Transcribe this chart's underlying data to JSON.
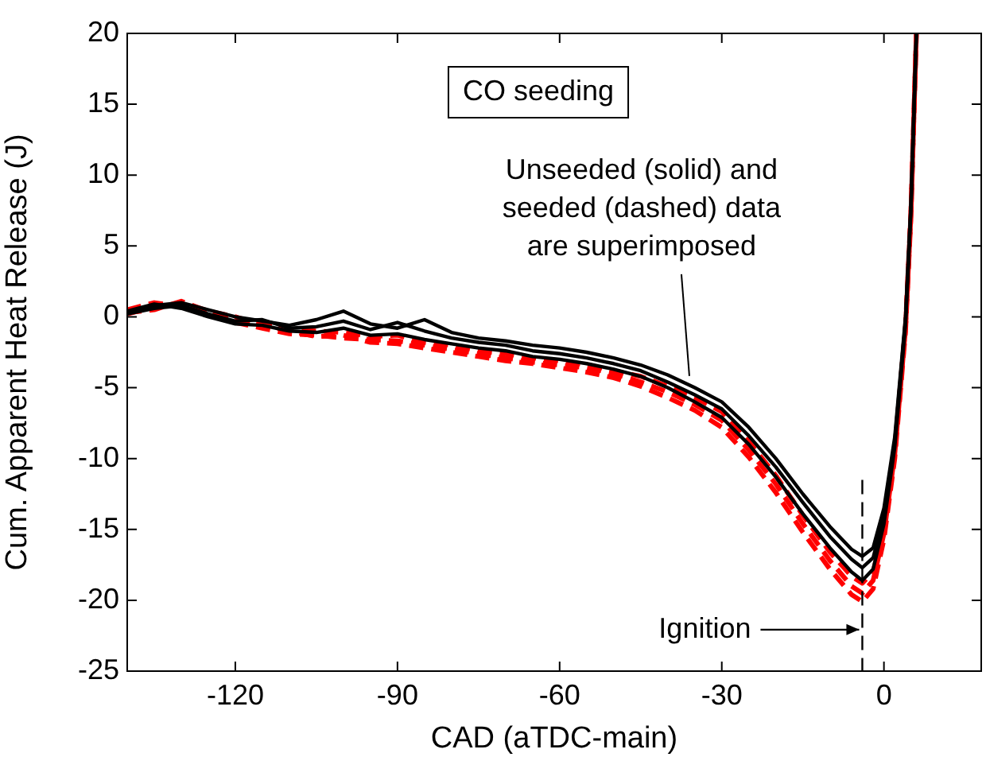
{
  "chart_data": {
    "type": "line",
    "xlabel": "CAD (aTDC-main)",
    "ylabel": "Cum. Apparent Heat Release (J)",
    "xlim": [
      -140,
      18
    ],
    "xticks": [
      -120,
      -90,
      -60,
      -30,
      0
    ],
    "ylim": [
      -25,
      20
    ],
    "yticks": [
      -25,
      -20,
      -15,
      -10,
      -5,
      0,
      5,
      10,
      15,
      20
    ],
    "marker": "none",
    "series": [
      {
        "color": "#000000",
        "line_style": "solid",
        "x": [
          -140,
          -135,
          -130,
          -125,
          -120,
          -115,
          -110,
          -105,
          -100,
          -95,
          -90,
          -85,
          -80,
          -75,
          -70,
          -65,
          -60,
          -55,
          -50,
          -45,
          -40,
          -35,
          -30,
          -25,
          -20,
          -15,
          -10,
          -6,
          -4,
          -2,
          0,
          2,
          4,
          5,
          6
        ],
        "values": [
          0.3,
          0.8,
          1.0,
          0.5,
          0.0,
          -0.3,
          -0.6,
          -0.2,
          0.4,
          -0.5,
          -0.8,
          -0.2,
          -1.1,
          -1.5,
          -1.7,
          -2.0,
          -2.2,
          -2.5,
          -2.9,
          -3.4,
          -4.1,
          -5.0,
          -6.0,
          -7.8,
          -10.0,
          -12.5,
          -14.8,
          -16.4,
          -16.9,
          -16.3,
          -13.5,
          -8.5,
          0.0,
          8.0,
          20
        ]
      },
      {
        "color": "#000000",
        "line_style": "solid",
        "x": [
          -140,
          -135,
          -130,
          -125,
          -120,
          -115,
          -110,
          -105,
          -100,
          -95,
          -90,
          -85,
          -80,
          -75,
          -70,
          -65,
          -60,
          -55,
          -50,
          -45,
          -40,
          -35,
          -30,
          -25,
          -20,
          -15,
          -10,
          -6,
          -4,
          -2,
          0,
          2,
          4,
          5,
          6
        ],
        "values": [
          0.2,
          0.6,
          0.8,
          0.2,
          -0.3,
          -0.2,
          -0.8,
          -0.7,
          -0.3,
          -0.9,
          -0.4,
          -1.0,
          -1.5,
          -1.8,
          -2.0,
          -2.4,
          -2.6,
          -2.9,
          -3.3,
          -3.8,
          -4.6,
          -5.5,
          -6.5,
          -8.4,
          -10.6,
          -13.1,
          -15.5,
          -17.1,
          -17.7,
          -17.0,
          -14.0,
          -8.8,
          -0.2,
          7.8,
          20
        ]
      },
      {
        "color": "#000000",
        "line_style": "solid",
        "x": [
          -140,
          -135,
          -130,
          -125,
          -120,
          -115,
          -110,
          -105,
          -100,
          -95,
          -90,
          -85,
          -80,
          -75,
          -70,
          -65,
          -60,
          -55,
          -50,
          -45,
          -40,
          -35,
          -30,
          -25,
          -20,
          -15,
          -10,
          -6,
          -4,
          -2,
          0,
          2,
          4,
          5,
          6
        ],
        "values": [
          0.4,
          0.9,
          0.6,
          0.0,
          -0.5,
          -0.6,
          -1.0,
          -1.1,
          -0.8,
          -1.3,
          -1.2,
          -1.6,
          -1.9,
          -2.2,
          -2.4,
          -2.8,
          -3.0,
          -3.3,
          -3.7,
          -4.2,
          -5.0,
          -6.0,
          -7.1,
          -9.0,
          -11.3,
          -13.9,
          -16.3,
          -18.0,
          -18.6,
          -17.8,
          -14.6,
          -9.2,
          -0.5,
          7.6,
          20
        ]
      },
      {
        "color": "#ff0000",
        "line_style": "dashed",
        "x": [
          -140,
          -135,
          -130,
          -125,
          -120,
          -115,
          -110,
          -105,
          -100,
          -95,
          -90,
          -85,
          -80,
          -75,
          -70,
          -65,
          -60,
          -55,
          -50,
          -45,
          -40,
          -35,
          -30,
          -25,
          -20,
          -15,
          -10,
          -6,
          -4,
          -2,
          0,
          2,
          4,
          5,
          6
        ],
        "values": [
          0.5,
          1.0,
          0.7,
          0.3,
          -0.2,
          -0.5,
          -0.9,
          -1.0,
          -1.1,
          -1.4,
          -1.3,
          -1.8,
          -2.0,
          -2.4,
          -2.6,
          -2.9,
          -3.1,
          -3.4,
          -3.8,
          -4.2,
          -4.9,
          -5.7,
          -6.7,
          -8.8,
          -11.2,
          -14.0,
          -16.6,
          -18.3,
          -18.8,
          -18.0,
          -14.9,
          -9.4,
          -0.6,
          7.5,
          20
        ]
      },
      {
        "color": "#ff0000",
        "line_style": "dashed",
        "x": [
          -140,
          -135,
          -130,
          -125,
          -120,
          -115,
          -110,
          -105,
          -100,
          -95,
          -90,
          -85,
          -80,
          -75,
          -70,
          -65,
          -60,
          -55,
          -50,
          -45,
          -40,
          -35,
          -30,
          -25,
          -20,
          -15,
          -10,
          -6,
          -4,
          -2,
          0,
          2,
          4,
          5,
          6
        ],
        "values": [
          0.2,
          0.7,
          0.9,
          0.1,
          -0.4,
          -0.8,
          -1.2,
          -1.3,
          -1.5,
          -1.6,
          -1.7,
          -2.0,
          -2.3,
          -2.6,
          -2.9,
          -3.2,
          -3.4,
          -3.6,
          -4.0,
          -4.6,
          -5.3,
          -6.2,
          -7.3,
          -9.4,
          -11.8,
          -14.6,
          -17.2,
          -19.0,
          -19.5,
          -18.6,
          -15.3,
          -9.7,
          -0.8,
          7.3,
          20
        ]
      },
      {
        "color": "#ff0000",
        "line_style": "dashed",
        "x": [
          -140,
          -135,
          -130,
          -125,
          -120,
          -115,
          -110,
          -105,
          -100,
          -95,
          -90,
          -85,
          -80,
          -75,
          -70,
          -65,
          -60,
          -55,
          -50,
          -45,
          -40,
          -35,
          -30,
          -25,
          -20,
          -15,
          -10,
          -6,
          -4,
          -2,
          0,
          2,
          4,
          5,
          6
        ],
        "values": [
          0.3,
          0.5,
          1.1,
          0.4,
          0.0,
          -0.6,
          -1.0,
          -1.4,
          -1.3,
          -1.8,
          -1.9,
          -2.2,
          -2.5,
          -2.8,
          -3.1,
          -3.3,
          -3.6,
          -3.9,
          -4.3,
          -4.9,
          -5.7,
          -6.6,
          -7.8,
          -9.9,
          -12.4,
          -15.2,
          -17.8,
          -19.6,
          -20.1,
          -19.2,
          -15.7,
          -10.0,
          -1.0,
          7.1,
          20
        ]
      }
    ],
    "ref_lines": [
      {
        "axis": "x",
        "value": -4,
        "label": "Ignition",
        "line_style": "dashed",
        "color": "#000000"
      }
    ],
    "annotations": [
      "CO seeding",
      {
        "text": "Unseeded (solid) and seeded (dashed) data are superimposed",
        "x": -36,
        "y": -4.4
      }
    ]
  }
}
